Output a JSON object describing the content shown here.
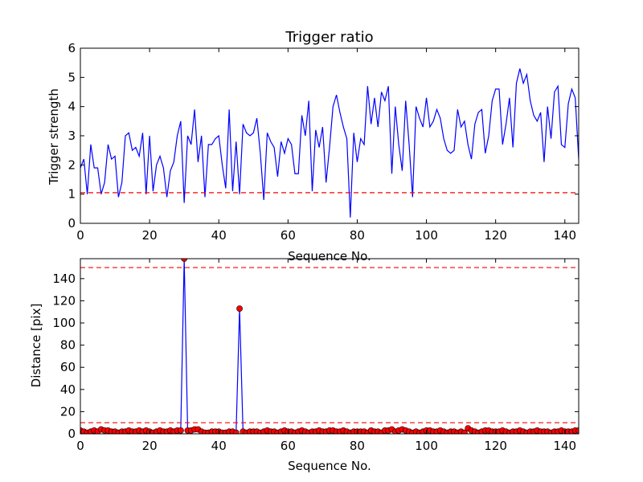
{
  "chart_data": [
    {
      "type": "line",
      "title": "Trigger ratio",
      "xlabel": "Sequence No.",
      "ylabel": "Trigger strength",
      "xlim": [
        0,
        144
      ],
      "ylim": [
        0,
        6
      ],
      "xticks": [
        "0",
        "20",
        "40",
        "60",
        "80",
        "100",
        "120",
        "140"
      ],
      "yticks": [
        "0",
        "1",
        "2",
        "3",
        "4",
        "5",
        "6"
      ],
      "series": [
        {
          "color": "#0000ff",
          "x": [
            0,
            1,
            2,
            3,
            4,
            5,
            6,
            7,
            8,
            9,
            10,
            11,
            12,
            13,
            14,
            15,
            16,
            17,
            18,
            19,
            20,
            21,
            22,
            23,
            24,
            25,
            26,
            27,
            28,
            29,
            30,
            31,
            32,
            33,
            34,
            35,
            36,
            37,
            38,
            39,
            40,
            41,
            42,
            43,
            44,
            45,
            46,
            47,
            48,
            49,
            50,
            51,
            52,
            53,
            54,
            55,
            56,
            57,
            58,
            59,
            60,
            61,
            62,
            63,
            64,
            65,
            66,
            67,
            68,
            69,
            70,
            71,
            72,
            73,
            74,
            75,
            76,
            77,
            78,
            79,
            80,
            81,
            82,
            83,
            84,
            85,
            86,
            87,
            88,
            89,
            90,
            91,
            92,
            93,
            94,
            95,
            96,
            97,
            98,
            99,
            100,
            101,
            102,
            103,
            104,
            105,
            106,
            107,
            108,
            109,
            110,
            111,
            112,
            113,
            114,
            115,
            116,
            117,
            118,
            119,
            120,
            121,
            122,
            123,
            124,
            125,
            126,
            127,
            128,
            129,
            130,
            131,
            132,
            133,
            134,
            135,
            136,
            137,
            138,
            139,
            140,
            141,
            142,
            143,
            144
          ],
          "y": [
            1.9,
            2.2,
            1.0,
            2.7,
            1.9,
            1.9,
            1.0,
            1.4,
            2.7,
            2.2,
            2.3,
            0.9,
            1.4,
            3.0,
            3.1,
            2.5,
            2.6,
            2.3,
            3.1,
            1.0,
            3.0,
            1.1,
            2.0,
            2.3,
            1.9,
            0.9,
            1.8,
            2.1,
            3.0,
            3.5,
            0.7,
            3.0,
            2.7,
            3.9,
            2.1,
            3.0,
            0.9,
            2.7,
            2.7,
            2.9,
            3.0,
            2.0,
            1.2,
            3.9,
            1.1,
            2.8,
            1.0,
            3.4,
            3.1,
            3.0,
            3.1,
            3.6,
            2.4,
            0.8,
            3.1,
            2.8,
            2.6,
            1.6,
            2.8,
            2.4,
            2.9,
            2.7,
            1.7,
            1.7,
            3.7,
            3.0,
            4.2,
            1.1,
            3.2,
            2.6,
            3.3,
            1.4,
            2.6,
            4.0,
            4.4,
            3.8,
            3.3,
            2.9,
            0.2,
            3.1,
            2.1,
            2.9,
            2.7,
            4.7,
            3.4,
            4.3,
            3.3,
            4.5,
            4.2,
            4.7,
            1.7,
            4.0,
            2.7,
            1.8,
            4.2,
            2.7,
            0.9,
            4.0,
            3.6,
            3.3,
            4.3,
            3.3,
            3.5,
            3.9,
            3.6,
            2.9,
            2.5,
            2.4,
            2.5,
            3.9,
            3.3,
            3.5,
            2.7,
            2.2,
            3.4,
            3.8,
            3.9,
            2.4,
            3.0,
            4.2,
            4.6,
            4.6,
            2.7,
            3.4,
            4.3,
            2.6,
            4.8,
            5.3,
            4.8,
            5.1,
            4.2,
            3.7,
            3.5,
            3.8,
            2.1,
            4.0,
            2.9,
            4.5,
            4.7,
            2.7,
            2.6,
            4.1,
            4.6,
            4.3,
            2.2
          ]
        }
      ],
      "hlines": [
        {
          "y": 1.05,
          "color": "#ff0000",
          "style": "dashed"
        }
      ]
    },
    {
      "type": "line",
      "title": "",
      "xlabel": "Sequence No.",
      "ylabel": "Distance [pix]",
      "xlim": [
        0,
        144
      ],
      "ylim": [
        0,
        158
      ],
      "xticks": [
        "0",
        "20",
        "40",
        "60",
        "80",
        "100",
        "120",
        "140"
      ],
      "yticks": [
        "0",
        "20",
        "40",
        "60",
        "80",
        "100",
        "120",
        "140"
      ],
      "series": [
        {
          "color": "#0000ff",
          "marker": "circle",
          "marker_color": "#ff0000",
          "x": [
            0,
            1,
            2,
            3,
            4,
            5,
            6,
            7,
            8,
            9,
            10,
            11,
            12,
            13,
            14,
            15,
            16,
            17,
            18,
            19,
            20,
            21,
            22,
            23,
            24,
            25,
            26,
            27,
            28,
            29,
            30,
            31,
            32,
            33,
            34,
            35,
            36,
            37,
            38,
            39,
            40,
            41,
            42,
            43,
            44,
            45,
            46,
            47,
            48,
            49,
            50,
            51,
            52,
            53,
            54,
            55,
            56,
            57,
            58,
            59,
            60,
            61,
            62,
            63,
            64,
            65,
            66,
            67,
            68,
            69,
            70,
            71,
            72,
            73,
            74,
            75,
            76,
            77,
            78,
            79,
            80,
            81,
            82,
            83,
            84,
            85,
            86,
            87,
            88,
            89,
            90,
            91,
            92,
            93,
            94,
            95,
            96,
            97,
            98,
            99,
            100,
            101,
            102,
            103,
            104,
            105,
            106,
            107,
            108,
            109,
            110,
            111,
            112,
            113,
            114,
            115,
            116,
            117,
            118,
            119,
            120,
            121,
            122,
            123,
            124,
            125,
            126,
            127,
            128,
            129,
            130,
            131,
            132,
            133,
            134,
            135,
            136,
            137,
            138,
            139,
            140,
            141,
            142,
            143,
            144
          ],
          "y": [
            3,
            2,
            1,
            2,
            3,
            2,
            4,
            3,
            3,
            2,
            2,
            1,
            2,
            2,
            3,
            2,
            2,
            3,
            2,
            3,
            2,
            1,
            2,
            3,
            2,
            2,
            3,
            2,
            3,
            3,
            158,
            3,
            3,
            4,
            4,
            2,
            1,
            1,
            2,
            2,
            2,
            1,
            1,
            2,
            2,
            1,
            113,
            2,
            1,
            2,
            2,
            2,
            1,
            2,
            3,
            2,
            2,
            1,
            2,
            3,
            2,
            2,
            1,
            2,
            3,
            2,
            1,
            2,
            2,
            3,
            2,
            2,
            3,
            3,
            2,
            2,
            3,
            2,
            1,
            2,
            2,
            2,
            2,
            1,
            3,
            2,
            2,
            1,
            3,
            3,
            4,
            2,
            3,
            4,
            3,
            2,
            1,
            2,
            1,
            2,
            3,
            3,
            2,
            2,
            3,
            2,
            1,
            2,
            2,
            1,
            2,
            1,
            5,
            3,
            2,
            1,
            2,
            3,
            3,
            2,
            2,
            2,
            3,
            2,
            1,
            2,
            2,
            3,
            2,
            1,
            2,
            2,
            3,
            2,
            2,
            2,
            1,
            2,
            2,
            3,
            2,
            2,
            2,
            3,
            3
          ]
        }
      ],
      "hlines": [
        {
          "y": 150,
          "color": "#ff0000",
          "style": "dashed"
        },
        {
          "y": 10,
          "color": "#ff0000",
          "style": "dashed"
        }
      ]
    }
  ]
}
